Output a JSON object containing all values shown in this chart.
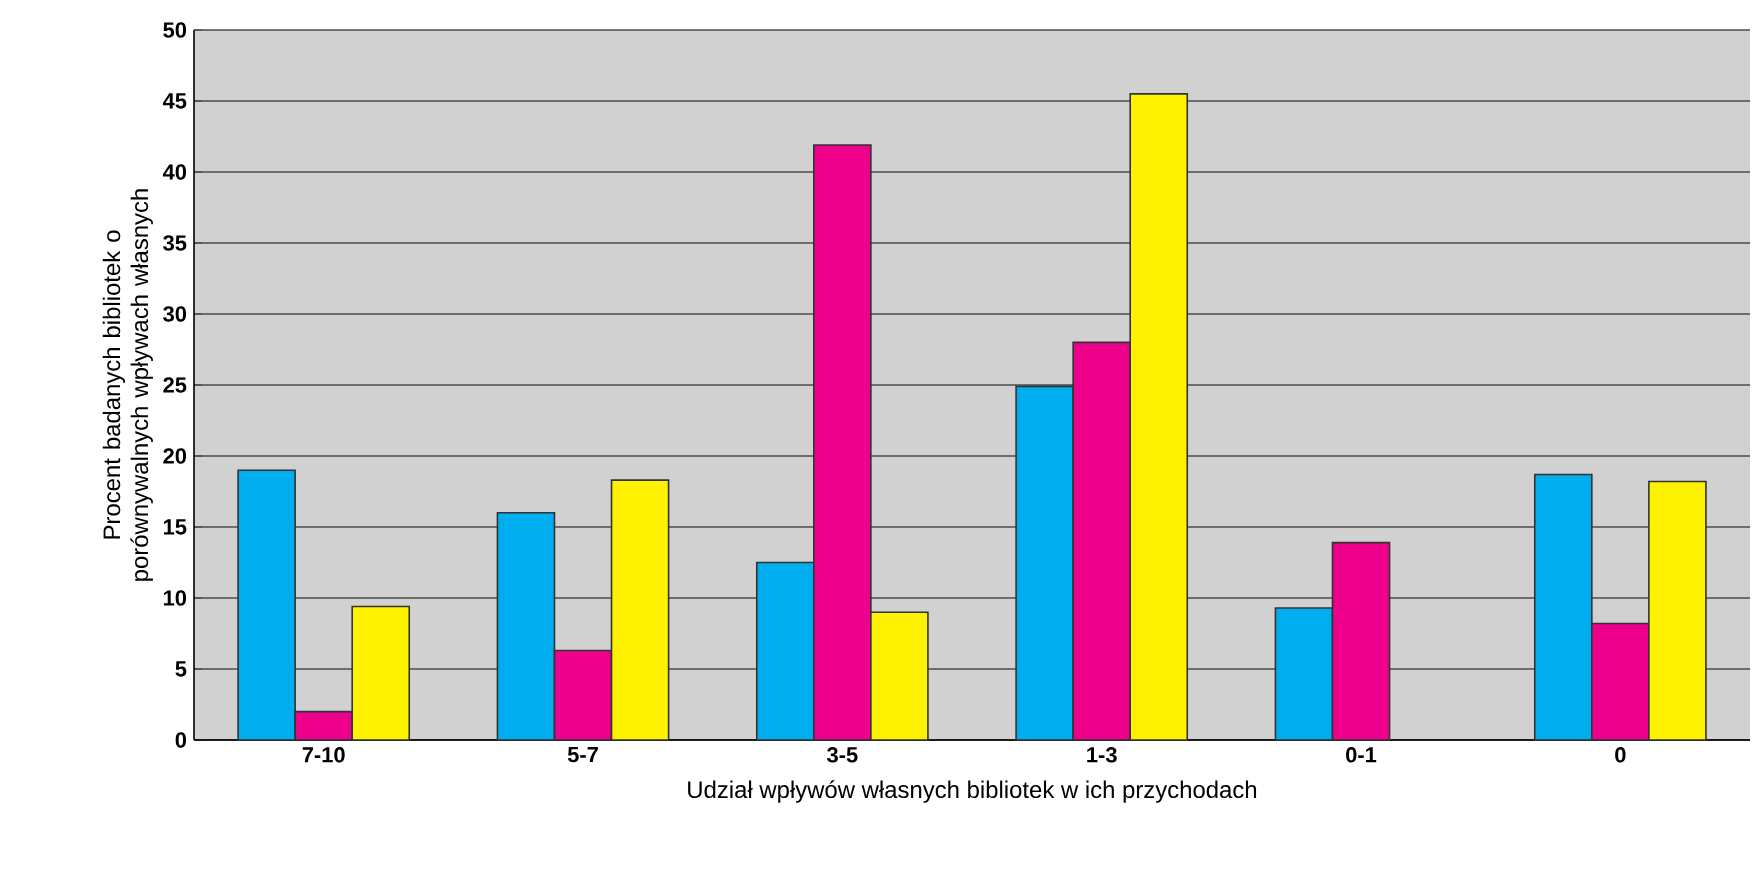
{
  "chart_data": {
    "type": "bar",
    "xlabel": "Udział wpływów własnych bibliotek w ich przychodach",
    "ylabel": "Procent badanych bibliotek o porównywalnych wpływach własnych",
    "categories": [
      "7-10",
      "5-7",
      "3-5",
      "1-3",
      "0-1",
      "0"
    ],
    "series": [
      {
        "color": "#00adef",
        "values": [
          19.0,
          16.0,
          12.5,
          24.9,
          9.3,
          18.7
        ]
      },
      {
        "color": "#ec008c",
        "values": [
          2.0,
          6.3,
          41.9,
          28.0,
          13.9,
          8.2
        ]
      },
      {
        "color": "#fff200",
        "values": [
          9.4,
          18.3,
          9.0,
          45.5,
          null,
          18.2
        ]
      }
    ],
    "ylim": [
      0,
      50
    ],
    "yticks": [
      0,
      5,
      10,
      15,
      20,
      25,
      30,
      35,
      40,
      45,
      50
    ],
    "grid": "y"
  }
}
